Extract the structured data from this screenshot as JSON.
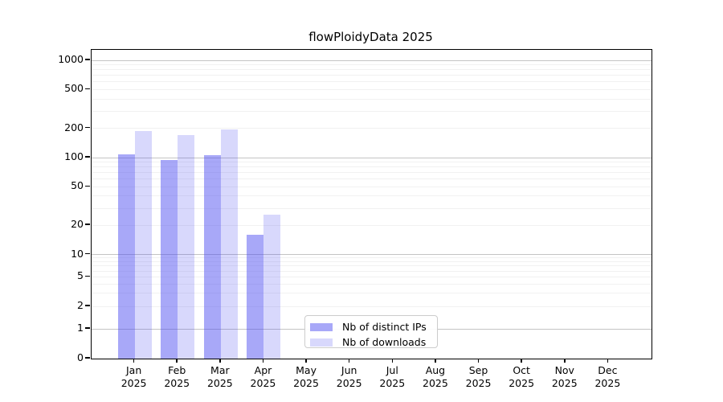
{
  "title": "flowPloidyData 2025",
  "legend": {
    "items": [
      {
        "label": "Nb of distinct IPs",
        "color": "rgba(70,70,240,0.47)"
      },
      {
        "label": "Nb of downloads",
        "color": "rgba(70,70,240,0.21)"
      }
    ]
  },
  "chart_data": {
    "type": "bar",
    "title": "flowPloidyData 2025",
    "categories": [
      "Jan 2025",
      "Feb 2025",
      "Mar 2025",
      "Apr 2025",
      "May 2025",
      "Jun 2025",
      "Jul 2025",
      "Aug 2025",
      "Sep 2025",
      "Oct 2025",
      "Nov 2025",
      "Dec 2025"
    ],
    "series": [
      {
        "name": "Nb of distinct IPs",
        "color": "rgba(70,70,240,0.47)",
        "values": [
          108,
          94,
          105,
          16,
          null,
          null,
          null,
          null,
          null,
          null,
          null,
          null
        ]
      },
      {
        "name": "Nb of downloads",
        "color": "rgba(70,70,240,0.21)",
        "values": [
          188,
          171,
          196,
          26,
          null,
          null,
          null,
          null,
          null,
          null,
          null,
          null
        ]
      }
    ],
    "y_axis": {
      "scale": "log-with-zero-baseline",
      "ticks": [
        0,
        1,
        2,
        5,
        10,
        20,
        50,
        100,
        200,
        500,
        1000
      ],
      "minor_gridlines": [
        2,
        3,
        4,
        5,
        6,
        7,
        8,
        9,
        20,
        30,
        40,
        50,
        60,
        70,
        80,
        90,
        200,
        300,
        400,
        500,
        600,
        700,
        800,
        900
      ],
      "major_gridlines": [
        1,
        10,
        100,
        1000
      ],
      "range": [
        0,
        1280
      ]
    },
    "x_axis": {
      "label_year_line": "2025"
    },
    "grid": "horizontal-only",
    "legend_position": "lower-center",
    "colors": {
      "major_grid": "#c4c4c4",
      "minor_grid": "#f1f1f1",
      "axis": "#000000"
    }
  }
}
